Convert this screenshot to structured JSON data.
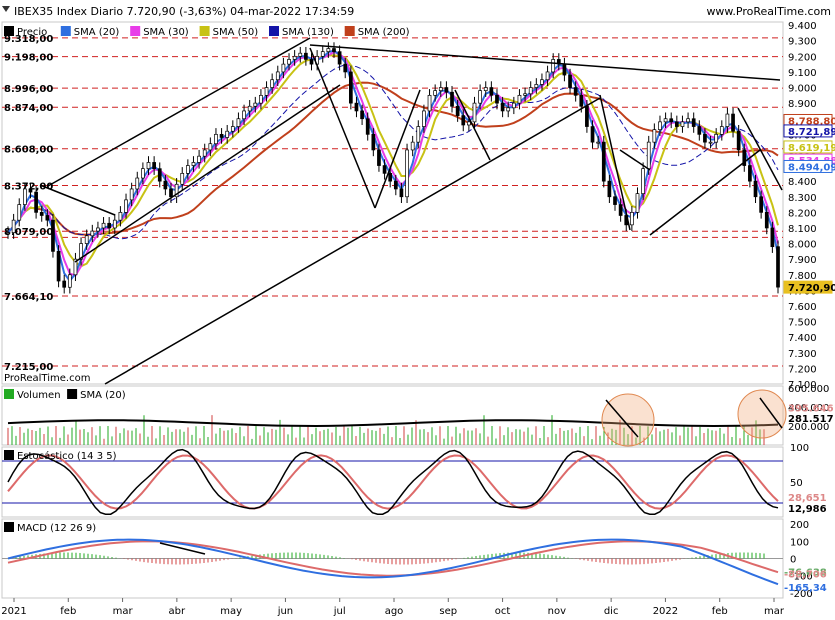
{
  "header": {
    "title": "IBEX35 Index Diario 7.720,90 (-3,63%) 04-mar-2022 17:34:59",
    "site": "www.ProRealTime.com",
    "watermark": "ProRealTime.com"
  },
  "legends": {
    "price": [
      {
        "label": "Precio",
        "color": "#000000"
      },
      {
        "label": "SMA (20)",
        "color": "#2f6fe0"
      },
      {
        "label": "SMA (30)",
        "color": "#e83ce8"
      },
      {
        "label": "SMA (50)",
        "color": "#c8c214"
      },
      {
        "label": "SMA (130)",
        "color": "#1414a8"
      },
      {
        "label": "SMA (200)",
        "color": "#c0401c"
      }
    ],
    "volume": [
      {
        "label": "Volumen",
        "color": "#22aa22"
      },
      {
        "label": "SMA (20)",
        "color": "#000000"
      }
    ],
    "stoch": [
      {
        "label": "Estocástico (14 3 5)",
        "color": "#000000"
      }
    ],
    "macd": [
      {
        "label": "MACD (12 26 9)",
        "color": "#000000"
      }
    ]
  },
  "chart_data": {
    "type": "line",
    "title": "IBEX35 Index Diario",
    "x_labels": [
      "2021",
      "feb",
      "mar",
      "abr",
      "may",
      "jun",
      "jul",
      "ago",
      "sep",
      "oct",
      "nov",
      "dic",
      "2022",
      "feb",
      "mar"
    ],
    "price_axis": {
      "ticks": [
        "9.400",
        "9.300",
        "9.200",
        "9.100",
        "9.000",
        "8.900",
        "8.800",
        "8.700",
        "8.600",
        "8.500",
        "8.400",
        "8.300",
        "8.200",
        "8.100",
        "8.000",
        "7.900",
        "7.800",
        "7.700",
        "7.600",
        "7.500",
        "7.400",
        "7.300",
        "7.200",
        "7.100"
      ],
      "range": [
        7100,
        9420
      ]
    },
    "left_levels": [
      "9.318,00",
      "9.198,00",
      "8.996,00",
      "8.874,00",
      "8.608,00",
      "8.372,00",
      "8.079,00",
      "7.664,10",
      "7.215,00"
    ],
    "level_values": [
      9318,
      9198,
      8996,
      8874,
      8608,
      8372,
      8079,
      8040,
      7664.1,
      7215
    ],
    "right_values": [
      {
        "label": "8.788,80",
        "value": 8788.8,
        "color": "#c0401c"
      },
      {
        "label": "8.721,89",
        "value": 8721.89,
        "color": "#1414a8"
      },
      {
        "label": "8.619,19",
        "value": 8619.19,
        "color": "#c8c214"
      },
      {
        "label": "8.534,88",
        "value": 8534.88,
        "color": "#e83ce8"
      },
      {
        "label": "8.494,09",
        "value": 8494.09,
        "color": "#2f6fe0"
      },
      {
        "label": "7.720,90",
        "value": 7720.9,
        "color": "#e8c020"
      }
    ],
    "price_close": [
      8070,
      8150,
      8250,
      8350,
      8330,
      8200,
      8180,
      8150,
      7950,
      7760,
      7720,
      7800,
      7900,
      8000,
      8050,
      8080,
      8100,
      8130,
      8100,
      8150,
      8200,
      8280,
      8350,
      8420,
      8480,
      8520,
      8480,
      8400,
      8350,
      8300,
      8380,
      8450,
      8500,
      8520,
      8560,
      8600,
      8640,
      8700,
      8680,
      8720,
      8750,
      8800,
      8850,
      8880,
      8900,
      8950,
      9000,
      9050,
      9100,
      9150,
      9180,
      9200,
      9220,
      9180,
      9150,
      9200,
      9230,
      9250,
      9230,
      9150,
      9100,
      8900,
      8850,
      8800,
      8700,
      8600,
      8500,
      8450,
      8400,
      8350,
      8300,
      8600,
      8650,
      8750,
      8850,
      8950,
      8980,
      9000,
      8970,
      8880,
      8820,
      8760,
      8780,
      8900,
      8980,
      9000,
      8950,
      8900,
      8850,
      8870,
      8900,
      8950,
      8960,
      9000,
      9020,
      9050,
      9100,
      9180,
      9150,
      9080,
      9000,
      8950,
      8880,
      8750,
      8650,
      8650,
      8400,
      8300,
      8250,
      8180,
      8120,
      8200,
      8320,
      8480,
      8650,
      8730,
      8780,
      8800,
      8780,
      8750,
      8780,
      8800,
      8750,
      8700,
      8650,
      8650,
      8700,
      8750,
      8830,
      8720,
      8600,
      8500,
      8400,
      8300,
      8200,
      8100,
      7980,
      7720.9
    ],
    "volume_axis": {
      "ticks": [
        "600.000",
        "400.000",
        "200.000"
      ],
      "range": [
        0,
        620000
      ]
    },
    "volume_values": [
      {
        "label": "395.646",
        "value": 395646,
        "color": "#dd8888"
      },
      {
        "label": "281.517",
        "value": 281517,
        "color": "#000000"
      }
    ],
    "stoch_axis": {
      "ticks": [
        "100",
        "50"
      ],
      "range": [
        0,
        100
      ]
    },
    "stoch_values": [
      {
        "label": "28,651",
        "value": 28.651,
        "color": "#dd8888"
      },
      {
        "label": "12,986",
        "value": 12.986,
        "color": "#000000"
      }
    ],
    "macd_axis": {
      "ticks": [
        "200",
        "100",
        "0",
        "-100",
        "-200"
      ],
      "range": [
        -230,
        230
      ]
    },
    "macd_values": [
      {
        "label": "-76,638",
        "value": -76.638,
        "color": "#66aa66"
      },
      {
        "label": "-88,706",
        "value": -88.706,
        "color": "#dd8888"
      },
      {
        "label": "-165,34",
        "value": -165.34,
        "color": "#2f6fe0"
      }
    ]
  }
}
